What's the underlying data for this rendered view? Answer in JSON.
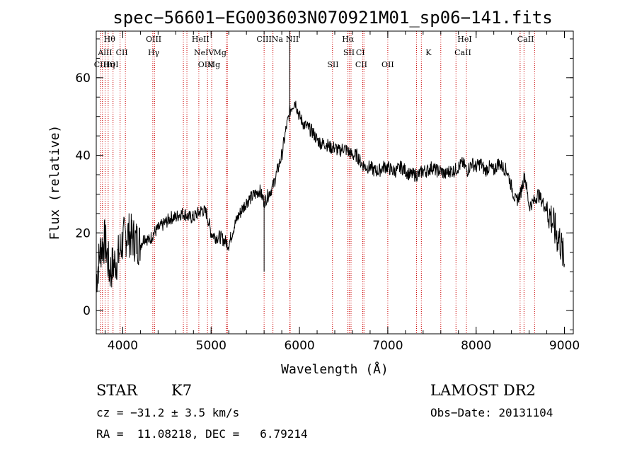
{
  "chart_data": {
    "type": "line",
    "title": "spec−56601−EG003603N070921M01_sp06−141.fits",
    "xlabel": "Wavelength (Å)",
    "ylabel": "Flux (relative)",
    "xlim": [
      3700,
      9100
    ],
    "ylim": [
      -6,
      72
    ],
    "xticks": [
      {
        "value": 4000,
        "label": "4000"
      },
      {
        "value": 5000,
        "label": "5000"
      },
      {
        "value": 6000,
        "label": "6000"
      },
      {
        "value": 7000,
        "label": "7000"
      },
      {
        "value": 8000,
        "label": "8000"
      },
      {
        "value": 9000,
        "label": "9000"
      }
    ],
    "yticks": [
      {
        "value": 0,
        "label": "0"
      },
      {
        "value": 20,
        "label": "20"
      },
      {
        "value": 40,
        "label": "40"
      },
      {
        "value": 60,
        "label": "60"
      }
    ],
    "line_color": "#000000",
    "marker_color": "#cc0000",
    "series": [
      {
        "x": [
          3700,
          3750,
          3800,
          3850,
          3900,
          3950,
          4000,
          4050,
          4100,
          4150,
          4200,
          4250,
          4300,
          4350,
          4400,
          4450,
          4500,
          4550,
          4600,
          4650,
          4700,
          4750,
          4800,
          4850,
          4900,
          4950,
          5000,
          5050,
          5100,
          5150,
          5200,
          5250,
          5300,
          5350,
          5400,
          5450,
          5500,
          5550,
          5600,
          5650,
          5700,
          5750,
          5800,
          5850,
          5900,
          5950,
          6000,
          6050,
          6100,
          6150,
          6200,
          6250,
          6300,
          6350,
          6400,
          6450,
          6500,
          6550,
          6600,
          6650,
          6700,
          6750,
          6800,
          6850,
          6900,
          6950,
          7000,
          7050,
          7100,
          7150,
          7200,
          7250,
          7300,
          7350,
          7400,
          7450,
          7500,
          7550,
          7600,
          7650,
          7700,
          7750,
          7800,
          7850,
          7900,
          7950,
          8000,
          8050,
          8100,
          8150,
          8200,
          8250,
          8300,
          8350,
          8400,
          8450,
          8500,
          8550,
          8600,
          8650,
          8700,
          8750,
          8800,
          8850,
          8900,
          8950,
          9000
        ],
        "y": [
          8,
          16,
          18,
          10,
          12,
          14,
          18,
          20,
          19,
          18,
          17,
          19,
          18,
          20,
          21,
          22,
          23,
          24,
          24,
          25,
          25,
          24,
          24,
          25,
          26,
          25,
          20,
          19,
          19,
          18,
          17,
          21,
          24,
          26,
          28,
          29,
          30,
          31,
          28,
          30,
          32,
          36,
          40,
          47,
          52,
          54,
          50,
          48,
          47,
          46,
          44,
          43,
          43,
          42,
          42,
          41,
          42,
          41,
          40,
          40,
          38,
          37,
          37,
          36,
          36,
          37,
          37,
          36,
          36,
          37,
          36,
          35,
          35,
          35,
          36,
          36,
          37,
          36,
          36,
          35,
          36,
          36,
          37,
          38,
          36,
          38,
          37,
          38,
          36,
          37,
          36,
          38,
          37,
          36,
          32,
          28,
          30,
          35,
          27,
          28,
          30,
          28,
          26,
          24,
          20,
          18,
          12
        ]
      }
    ],
    "annotations": [
      "Hθ",
      "AlII",
      "CIII",
      "Hη",
      "OI",
      "CII",
      "OIII",
      "Hγ",
      "HeII",
      "NeIV",
      "OIII",
      "Mg",
      "Mg",
      "CIII",
      "Na",
      "NII",
      "Hα",
      "SII",
      "CI",
      "SII",
      "CII",
      "OII",
      "K",
      "HeI",
      "CaII",
      "CaII"
    ]
  },
  "footer": {
    "object_type": "STAR",
    "subclass": "K7",
    "survey": "LAMOST DR2",
    "cz": "cz = −31.2 ± 3.5 km/s",
    "obs_date": "Obs−Date: 20131104",
    "coords": "RA =  11.08218, DEC =   6.79214"
  }
}
